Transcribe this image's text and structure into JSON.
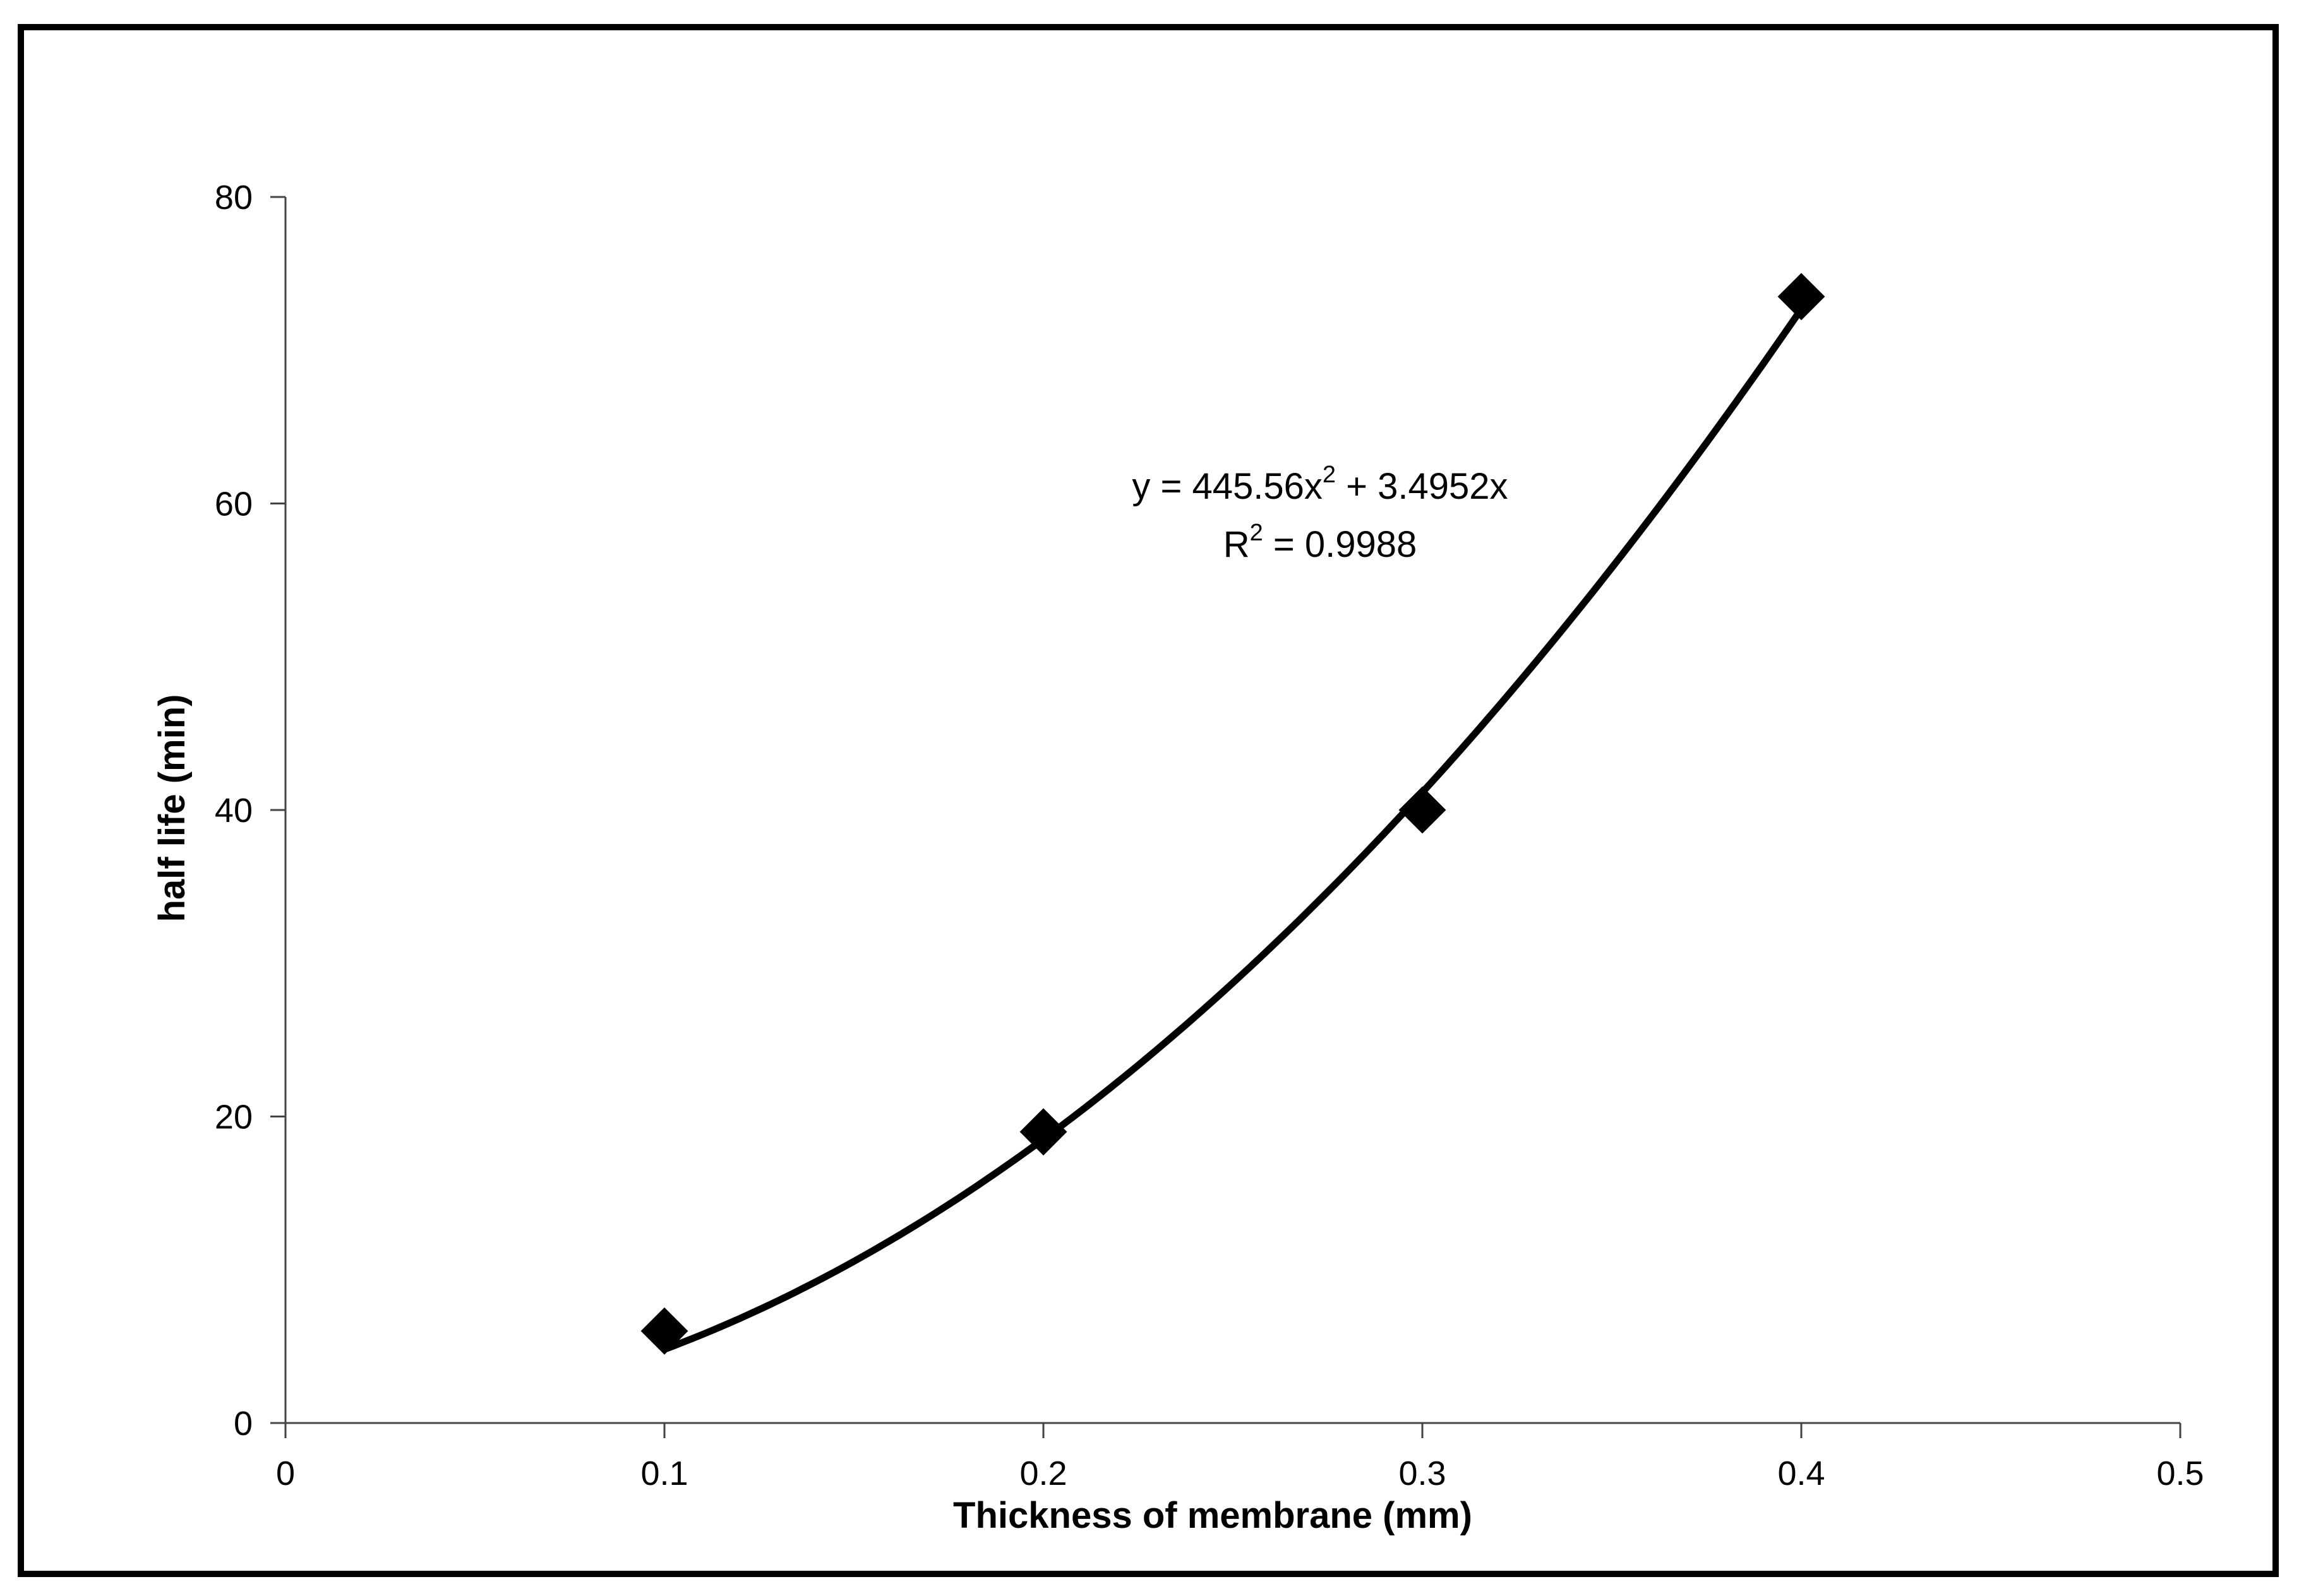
{
  "chart_data": {
    "type": "scatter",
    "title": "",
    "xlabel": "Thickness of membrane (mm)",
    "ylabel": "half life (min)",
    "xlim": [
      0,
      0.5
    ],
    "ylim": [
      0,
      80
    ],
    "x_ticks": [
      "0",
      "0.1",
      "0.2",
      "0.3",
      "0.4",
      "0.5"
    ],
    "y_ticks": [
      "0",
      "20",
      "40",
      "60",
      "80"
    ],
    "grid": false,
    "legend": "none",
    "series": [
      {
        "marker": "diamond",
        "color": "#000000",
        "x": [
          0.1,
          0.2,
          0.3,
          0.4
        ],
        "y": [
          6,
          19,
          40,
          73.5
        ]
      }
    ],
    "trendline": {
      "type": "polynomial",
      "order": 2,
      "coefficients": {
        "a": 445.56,
        "b": 3.4952,
        "c": 0
      },
      "equation": {
        "prefix": "y = 445.56x",
        "exp": "2",
        "suffix": " + 3.4952x"
      },
      "r_squared": {
        "prefix": "R",
        "exp": "2",
        "suffix": " = 0.9988"
      }
    }
  }
}
